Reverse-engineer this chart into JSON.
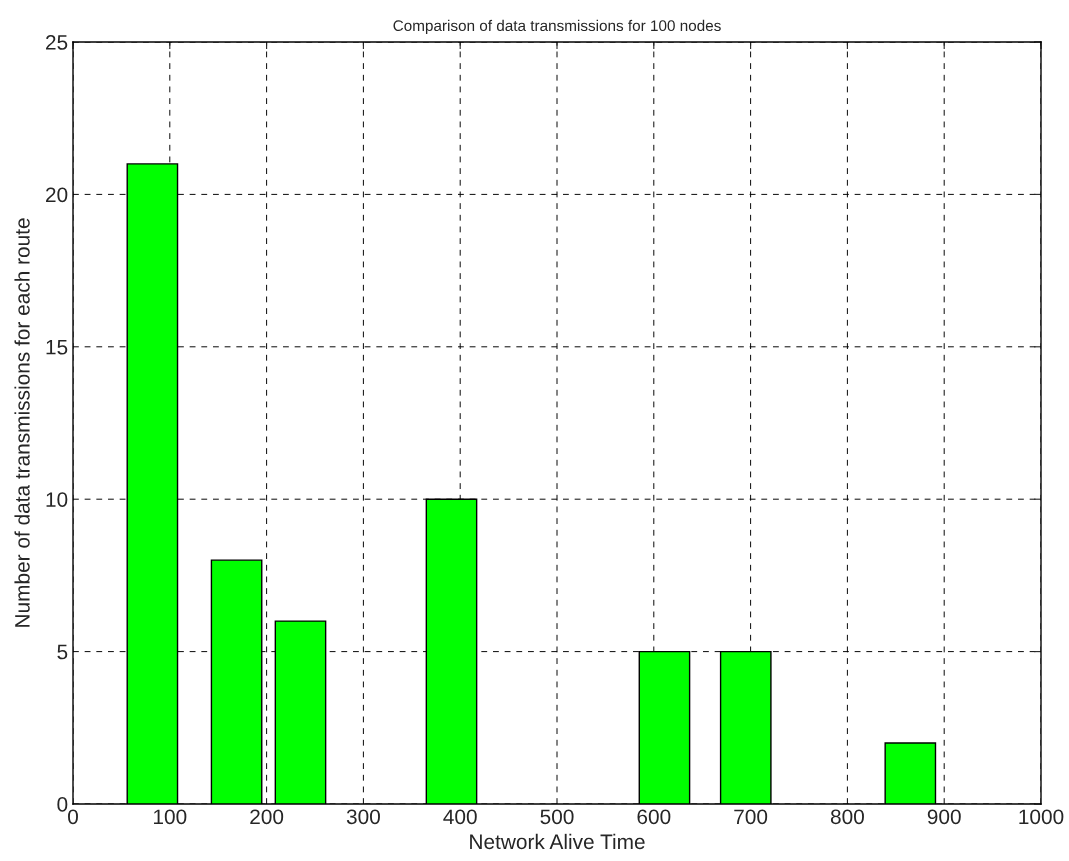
{
  "chart_data": {
    "type": "bar",
    "title": "Comparison of data transmissions for 100 nodes",
    "xlabel": "Network Alive Time",
    "ylabel": "Number of data transmissions for each route",
    "x": [
      82,
      169,
      235,
      391,
      611,
      695,
      865
    ],
    "values": [
      21,
      8,
      6,
      10,
      5,
      5,
      2
    ],
    "color": "#00ff00",
    "xlim": [
      0,
      1000
    ],
    "xticks": [
      0,
      100,
      200,
      300,
      400,
      500,
      600,
      700,
      800,
      900,
      1000
    ],
    "ylim": [
      0,
      25
    ],
    "yticks": [
      0,
      5,
      10,
      15,
      20,
      25
    ],
    "grid": true
  }
}
